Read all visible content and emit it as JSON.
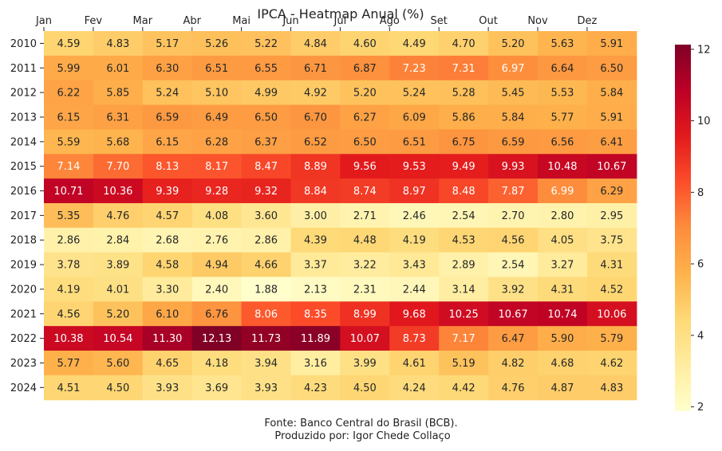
{
  "chart_data": {
    "type": "heatmap",
    "title": "IPCA - Heatmap Anual (%)",
    "columns": [
      "Jan",
      "Fev",
      "Mar",
      "Abr",
      "Mai",
      "Jun",
      "Jul",
      "Ago",
      "Set",
      "Out",
      "Nov",
      "Dez"
    ],
    "rows": [
      "2010",
      "2011",
      "2012",
      "2013",
      "2014",
      "2015",
      "2016",
      "2017",
      "2018",
      "2019",
      "2020",
      "2021",
      "2022",
      "2023",
      "2024"
    ],
    "values": [
      [
        4.59,
        4.83,
        5.17,
        5.26,
        5.22,
        4.84,
        4.6,
        4.49,
        4.7,
        5.2,
        5.63,
        5.91
      ],
      [
        5.99,
        6.01,
        6.3,
        6.51,
        6.55,
        6.71,
        6.87,
        7.23,
        7.31,
        6.97,
        6.64,
        6.5
      ],
      [
        6.22,
        5.85,
        5.24,
        5.1,
        4.99,
        4.92,
        5.2,
        5.24,
        5.28,
        5.45,
        5.53,
        5.84
      ],
      [
        6.15,
        6.31,
        6.59,
        6.49,
        6.5,
        6.7,
        6.27,
        6.09,
        5.86,
        5.84,
        5.77,
        5.91
      ],
      [
        5.59,
        5.68,
        6.15,
        6.28,
        6.37,
        6.52,
        6.5,
        6.51,
        6.75,
        6.59,
        6.56,
        6.41
      ],
      [
        7.14,
        7.7,
        8.13,
        8.17,
        8.47,
        8.89,
        9.56,
        9.53,
        9.49,
        9.93,
        10.48,
        10.67
      ],
      [
        10.71,
        10.36,
        9.39,
        9.28,
        9.32,
        8.84,
        8.74,
        8.97,
        8.48,
        7.87,
        6.99,
        6.29
      ],
      [
        5.35,
        4.76,
        4.57,
        4.08,
        3.6,
        3.0,
        2.71,
        2.46,
        2.54,
        2.7,
        2.8,
        2.95
      ],
      [
        2.86,
        2.84,
        2.68,
        2.76,
        2.86,
        4.39,
        4.48,
        4.19,
        4.53,
        4.56,
        4.05,
        3.75
      ],
      [
        3.78,
        3.89,
        4.58,
        4.94,
        4.66,
        3.37,
        3.22,
        3.43,
        2.89,
        2.54,
        3.27,
        4.31
      ],
      [
        4.19,
        4.01,
        3.3,
        2.4,
        1.88,
        2.13,
        2.31,
        2.44,
        3.14,
        3.92,
        4.31,
        4.52
      ],
      [
        4.56,
        5.2,
        6.1,
        6.76,
        8.06,
        8.35,
        8.99,
        9.68,
        10.25,
        10.67,
        10.74,
        10.06
      ],
      [
        10.38,
        10.54,
        11.3,
        12.13,
        11.73,
        11.89,
        10.07,
        8.73,
        7.17,
        6.47,
        5.9,
        5.79
      ],
      [
        5.77,
        5.6,
        4.65,
        4.18,
        3.94,
        3.16,
        3.99,
        4.61,
        5.19,
        4.82,
        4.68,
        4.62
      ],
      [
        4.51,
        4.5,
        3.93,
        3.69,
        3.93,
        4.23,
        4.5,
        4.24,
        4.42,
        4.76,
        4.87,
        4.83
      ]
    ],
    "colormap": "YlOrRd",
    "colorbar": {
      "ticks": [
        2,
        4,
        6,
        8,
        10,
        12
      ]
    },
    "xaxis_position": "top"
  },
  "footer": {
    "source": "Fonte: Banco Central do Brasil (BCB).",
    "author": " Produzido por: Igor Chede Collaço"
  }
}
